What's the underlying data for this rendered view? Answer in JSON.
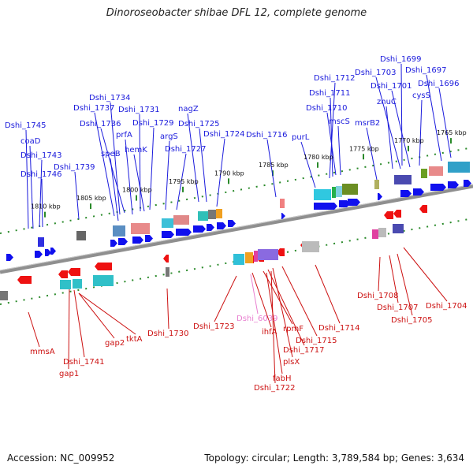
{
  "title": "Dinoroseobacter shibae DFL 12, complete genome",
  "footer": {
    "accession": "Accession: NC_009952",
    "summary": "Topology: circular; Length: 3,789,584 bp; Genes: 3,634"
  },
  "colors": {
    "forward_gene": "#1010ee",
    "reverse_gene": "#ee1111",
    "backbone": "#8f8f8f",
    "upper_label": "#1a1adc",
    "lower_label": "#cc1111",
    "tick": "#2a8a2a"
  },
  "scale_labels": [
    "1810 kbp",
    "1805 kbp",
    "1800 kbp",
    "1795 kbp",
    "1790 kbp",
    "1785 kbp",
    "1780 kbp",
    "1775 kbp",
    "1770 kbp",
    "1765 kbp"
  ],
  "upper_labels": [
    "Dshi_1745",
    "coaD",
    "Dshi_1743",
    "Dshi_1746",
    "Dshi_1739",
    "Dshi_1737",
    "Dshi_1734",
    "Dshi_1736",
    "speB",
    "prfA",
    "Dshi_1731",
    "Dshi_1729",
    "hemK",
    "argS",
    "nagZ",
    "Dshi_1725",
    "Dshi_1727",
    "Dshi_1724",
    "Dshi_1716",
    "purL",
    "Dshi_1712",
    "Dshi_1711",
    "Dshi_1710",
    "mscS",
    "msrB2",
    "Dshi_1699",
    "Dshi_1703",
    "Dshi_1697",
    "Dshi_1701",
    "Dshi_1696",
    "znuC",
    "cysS"
  ],
  "lower_labels": [
    "mmsA",
    "gap1",
    "Dshi_1741",
    "gap2",
    "tktA",
    "Dshi_1730",
    "Dshi_1723",
    "Dshi_6039",
    "ihfA",
    "rpmF",
    "Dshi_1717",
    "plsX",
    "fabH",
    "Dshi_1722",
    "Dshi_1715",
    "Dshi_1714",
    "Dshi_1708",
    "Dshi_1707",
    "Dshi_1705",
    "Dshi_1704"
  ],
  "lower_label_special_color": "#e87fd0"
}
